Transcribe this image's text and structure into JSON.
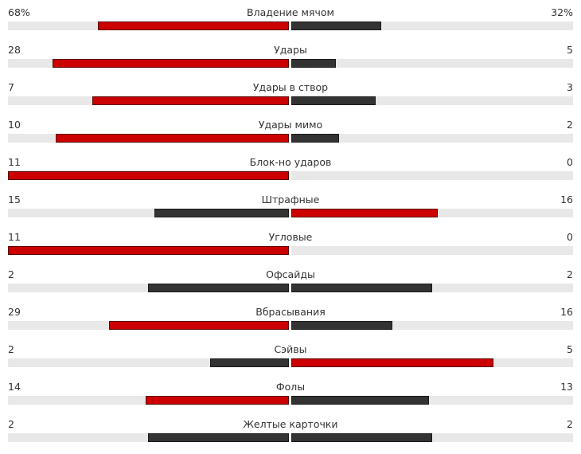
{
  "colors": {
    "winner": "#cc0000",
    "loser": "#333333",
    "track": "#e8e8e8"
  },
  "stats": [
    {
      "label": "Владение мячом",
      "left": "68%",
      "right": "32%",
      "left_share": 0.68,
      "right_share": 0.32
    },
    {
      "label": "Удары",
      "left": "28",
      "right": "5",
      "left_share": 0.84,
      "right_share": 0.16
    },
    {
      "label": "Удары в створ",
      "left": "7",
      "right": "3",
      "left_share": 0.7,
      "right_share": 0.3
    },
    {
      "label": "Удары мимо",
      "left": "10",
      "right": "2",
      "left_share": 0.83,
      "right_share": 0.17
    },
    {
      "label": "Блок-но ударов",
      "left": "11",
      "right": "0",
      "left_share": 1.0,
      "right_share": 0.0
    },
    {
      "label": "Штрафные",
      "left": "15",
      "right": "16",
      "left_share": 0.48,
      "right_share": 0.52
    },
    {
      "label": "Угловые",
      "left": "11",
      "right": "0",
      "left_share": 1.0,
      "right_share": 0.0
    },
    {
      "label": "Офсайды",
      "left": "2",
      "right": "2",
      "left_share": 0.5,
      "right_share": 0.5
    },
    {
      "label": "Вбрасывания",
      "left": "29",
      "right": "16",
      "left_share": 0.64,
      "right_share": 0.36
    },
    {
      "label": "Сэйвы",
      "left": "2",
      "right": "5",
      "left_share": 0.28,
      "right_share": 0.72
    },
    {
      "label": "Фолы",
      "left": "14",
      "right": "13",
      "left_share": 0.51,
      "right_share": 0.49
    },
    {
      "label": "Желтые карточки",
      "left": "2",
      "right": "2",
      "left_share": 0.5,
      "right_share": 0.5
    }
  ]
}
